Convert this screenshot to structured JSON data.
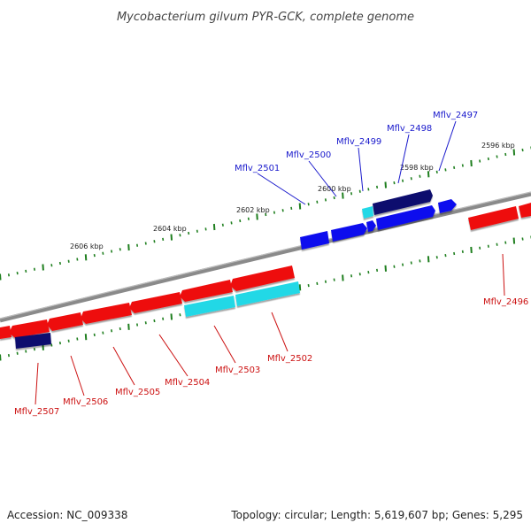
{
  "title": "Mycobacterium gilvum PYR-GCK, complete genome",
  "accession": "Accession: NC_009338",
  "summary": "Topology: circular; Length: 5,619,607 bp; Genes: 5,295",
  "colors": {
    "backbone": "#7a7a7a",
    "tick": "#1f7f1f",
    "forward_label": "#1a1acc",
    "reverse_label": "#cc1111",
    "gene_red": "#ee1111",
    "gene_blue": "#1111ee",
    "gene_navy": "#0b0b6e",
    "gene_cyan": "#22d8e6"
  },
  "kbp_labels": [
    "2596 kbp",
    "2598 kbp",
    "2600 kbp",
    "2602 kbp",
    "2604 kbp",
    "2606 kbp"
  ],
  "genes_top": [
    {
      "label": "Mflv_2497",
      "color": "#0b0b6e"
    },
    {
      "label": "Mflv_2498",
      "color": "#0b0b6e"
    },
    {
      "label": "Mflv_2499",
      "color": "#22d8e6"
    },
    {
      "label": "Mflv_2500",
      "color": "#1111ee"
    },
    {
      "label": "Mflv_2501",
      "color": "#1111ee"
    }
  ],
  "genes_bottom": [
    {
      "label": "Mflv_2496",
      "color": "#ee1111"
    },
    {
      "label": "Mflv_2502",
      "color": "#ee1111"
    },
    {
      "label": "Mflv_2503",
      "color": "#22d8e6"
    },
    {
      "label": "Mflv_2504",
      "color": "#ee1111"
    },
    {
      "label": "Mflv_2505",
      "color": "#ee1111"
    },
    {
      "label": "Mflv_2506",
      "color": "#ee1111"
    },
    {
      "label": "Mflv_2507",
      "color": "#0b0b6e"
    }
  ]
}
